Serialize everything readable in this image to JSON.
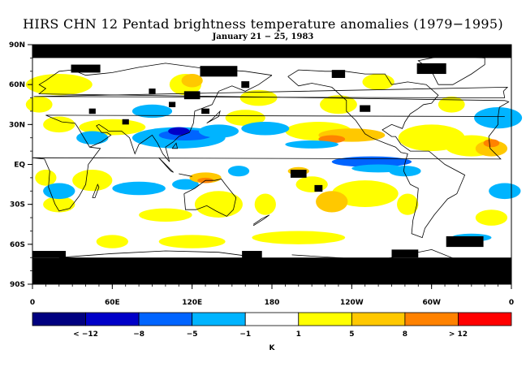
{
  "title": "HIRS CHN 12 Pentad brightness temperature anomalies (1979−1995)",
  "subtitle": "January 21 − 25, 1983",
  "map": {
    "projection": "equirectangular",
    "lon_range": [
      0,
      360
    ],
    "lat_range": [
      -90,
      90
    ],
    "lat_ticks": [
      "90N",
      "60N",
      "30N",
      "EQ",
      "30S",
      "60S",
      "90S"
    ],
    "lon_ticks": [
      "0",
      "60E",
      "120E",
      "180",
      "120W",
      "60W",
      "0"
    ],
    "missing_color": "#000000"
  },
  "legend": {
    "unit": "K",
    "labels": [
      "< −12",
      "−8",
      "−5",
      "−1",
      "1",
      "5",
      "8",
      "> 12"
    ],
    "colors": [
      "#000080",
      "#0000c8",
      "#0064ff",
      "#00b4ff",
      "#ffffff",
      "#ffff00",
      "#ffc800",
      "#ff8200",
      "#ff0000"
    ]
  }
}
